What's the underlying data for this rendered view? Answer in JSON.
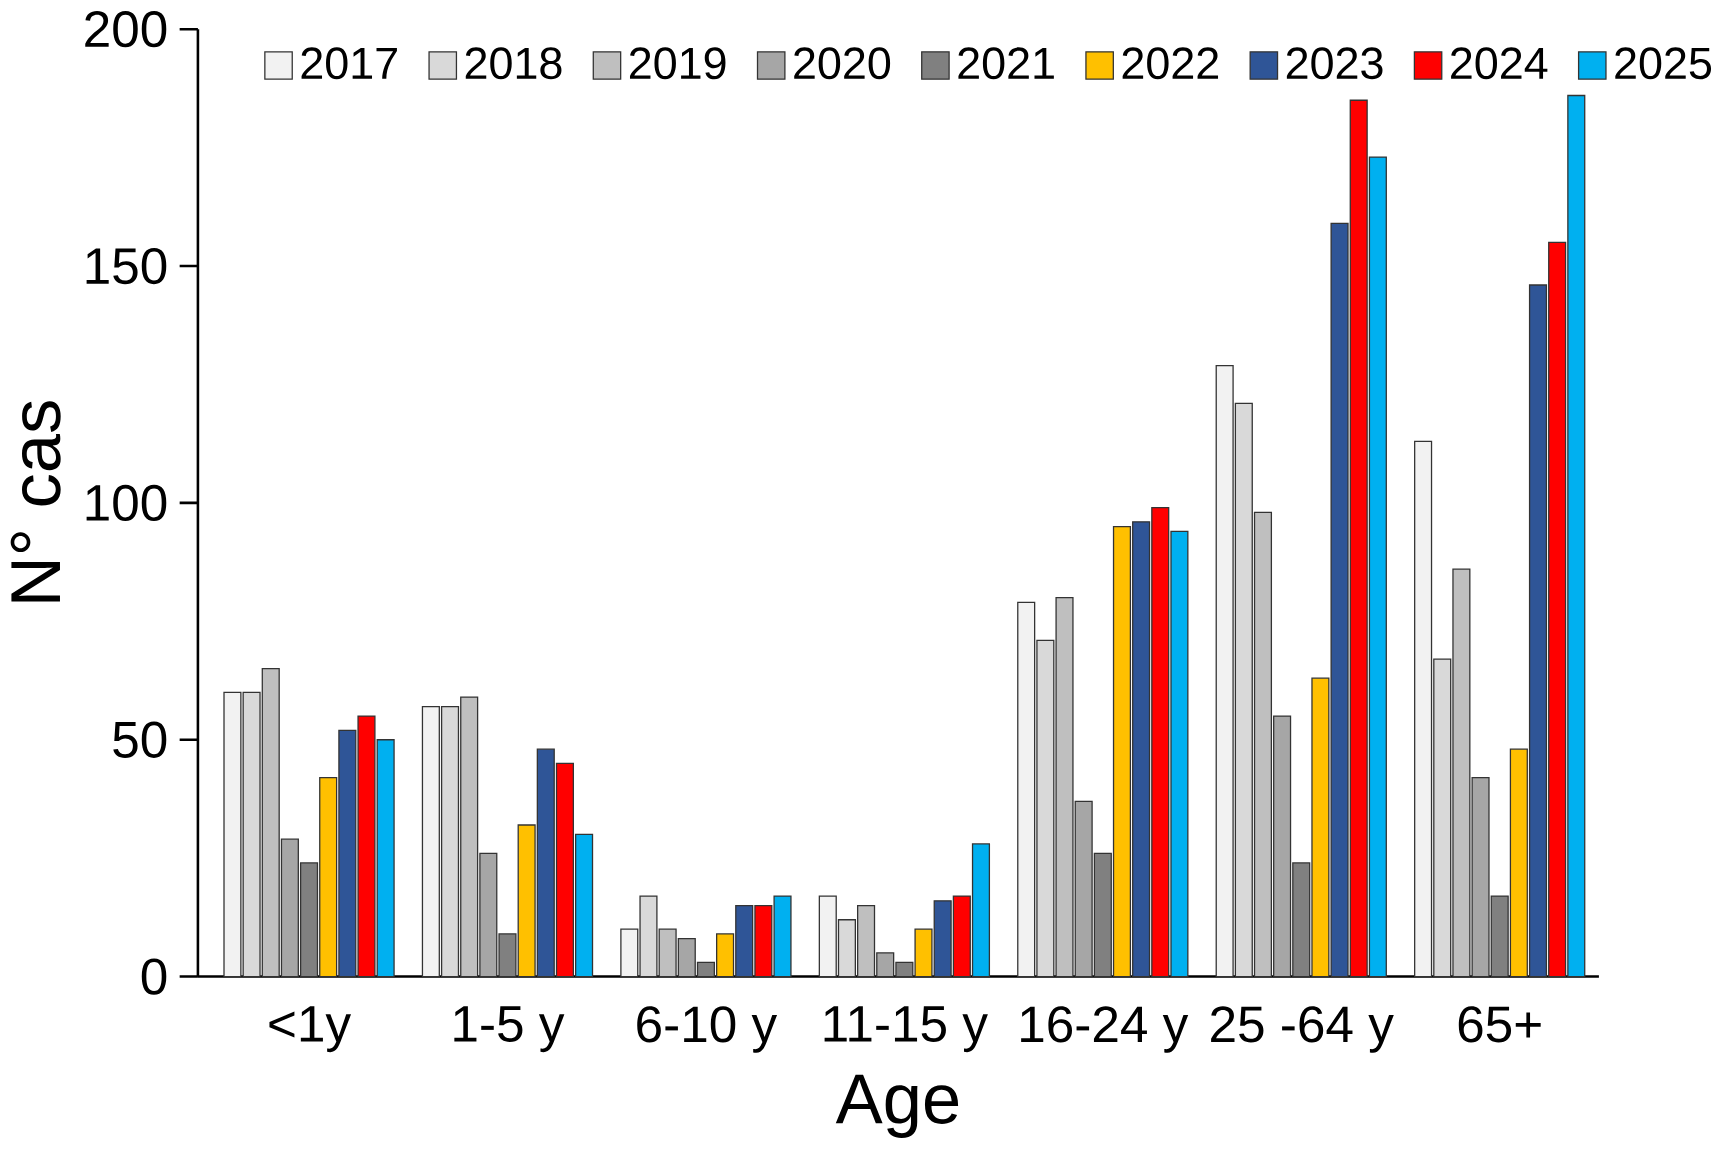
{
  "chart_data": {
    "type": "bar",
    "xlabel": "Age",
    "ylabel": "N° cas",
    "categories": [
      "<1y",
      "1-5 y",
      "6-10 y",
      "11-15 y",
      "16-24 y",
      "25 -64 y",
      "65+"
    ],
    "series": [
      {
        "name": "2017",
        "color": "#f2f2f2",
        "values": [
          60,
          57,
          10,
          17,
          79,
          129,
          113
        ]
      },
      {
        "name": "2018",
        "color": "#d9d9d9",
        "values": [
          60,
          57,
          17,
          12,
          71,
          121,
          67
        ]
      },
      {
        "name": "2019",
        "color": "#bfbfbf",
        "values": [
          65,
          59,
          10,
          15,
          80,
          98,
          86
        ]
      },
      {
        "name": "2020",
        "color": "#a6a6a6",
        "values": [
          29,
          26,
          8,
          5,
          37,
          55,
          42
        ]
      },
      {
        "name": "2021",
        "color": "#808080",
        "values": [
          24,
          9,
          3,
          3,
          26,
          24,
          17
        ]
      },
      {
        "name": "2022",
        "color": "#ffc000",
        "values": [
          42,
          32,
          9,
          10,
          95,
          63,
          48
        ]
      },
      {
        "name": "2023",
        "color": "#2f5597",
        "values": [
          52,
          48,
          15,
          16,
          96,
          159,
          146
        ]
      },
      {
        "name": "2024",
        "color": "#ff0000",
        "values": [
          55,
          45,
          15,
          17,
          99,
          185,
          155
        ]
      },
      {
        "name": "2025",
        "color": "#00b0f0",
        "values": [
          50,
          30,
          17,
          28,
          94,
          173,
          186
        ]
      }
    ],
    "ylim": [
      0,
      200
    ],
    "yticks": [
      0,
      50,
      100,
      150,
      200
    ],
    "grid": false,
    "legend": "top"
  }
}
